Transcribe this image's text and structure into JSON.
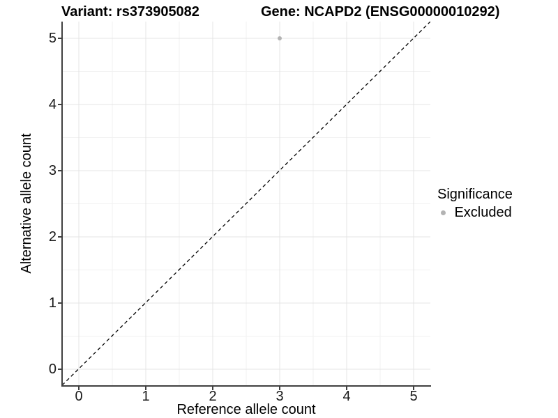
{
  "header": {
    "title_left": "Variant: rs373905082",
    "title_right": "Gene: NCAPD2 (ENSG00000010292)"
  },
  "chart_data": {
    "type": "scatter",
    "title": "Variant: rs373905082   Gene: NCAPD2 (ENSG00000010292)",
    "xlabel": "Reference allele count",
    "ylabel": "Alternative allele count",
    "xlim": [
      -0.25,
      5.25
    ],
    "ylim": [
      -0.25,
      5.25
    ],
    "x_ticks": [
      0,
      1,
      2,
      3,
      4,
      5
    ],
    "x_tick_labels": [
      "0",
      "1",
      "2",
      "3",
      "4",
      "5"
    ],
    "y_ticks": [
      0,
      1,
      2,
      3,
      4,
      5
    ],
    "y_tick_labels": [
      "0",
      "1",
      "2",
      "3",
      "4",
      "5"
    ],
    "grid": "major-and-minor",
    "series": [
      {
        "name": "Excluded",
        "color": "#b3b3b3",
        "points": [
          {
            "x": 3,
            "y": 5
          }
        ]
      }
    ],
    "reference_line": {
      "type": "identity",
      "slope": 1,
      "intercept": 0,
      "style": "dashed",
      "color": "#000000"
    },
    "legend": {
      "position": "right",
      "title": "Significance",
      "items": [
        {
          "label": "Excluded",
          "color": "#b3b3b3"
        }
      ]
    },
    "colors": {
      "axis_line": "#404040",
      "major_grid": "#e4e4e4",
      "minor_grid": "#f1f1f1",
      "tick_text": "#1a1a1a",
      "background": "#ffffff"
    }
  }
}
